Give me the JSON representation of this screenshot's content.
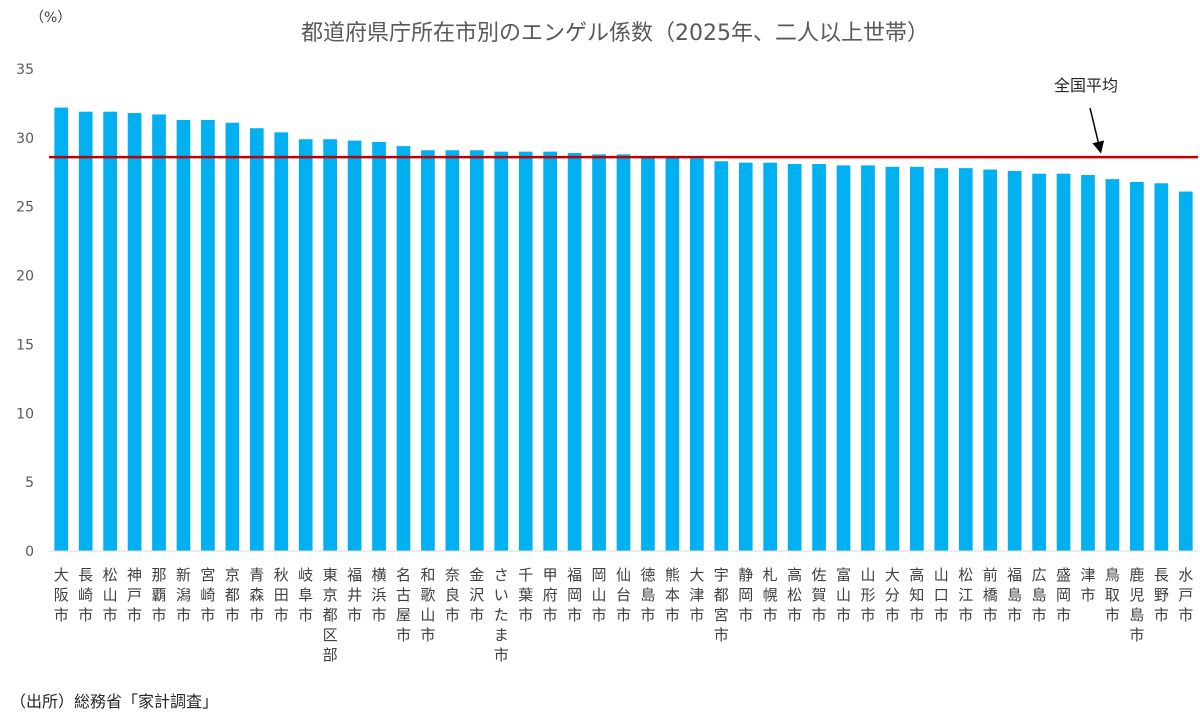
{
  "chart_data": {
    "type": "bar",
    "title": "都道府県庁所在市別のエンゲル係数（2025年、二人以上世帯）",
    "ylabel": "（%）",
    "ylim": [
      0,
      35
    ],
    "yticks": [
      0,
      5,
      10,
      15,
      20,
      25,
      30,
      35
    ],
    "grid": false,
    "categories": [
      "大阪市",
      "長崎市",
      "松山市",
      "神戸市",
      "那覇市",
      "新潟市",
      "宮崎市",
      "京都市",
      "青森市",
      "秋田市",
      "岐阜市",
      "東京都区部",
      "福井市",
      "横浜市",
      "名古屋市",
      "和歌山市",
      "奈良市",
      "金沢市",
      "さいたま市",
      "千葉市",
      "甲府市",
      "福岡市",
      "岡山市",
      "仙台市",
      "徳島市",
      "熊本市",
      "大津市",
      "宇都宮市",
      "静岡市",
      "札幌市",
      "高松市",
      "佐賀市",
      "富山市",
      "山形市",
      "大分市",
      "高知市",
      "山口市",
      "松江市",
      "前橋市",
      "福島市",
      "広島市",
      "盛岡市",
      "津市",
      "鳥取市",
      "鹿児島市",
      "長野市",
      "水戸市"
    ],
    "values": [
      32.2,
      31.9,
      31.9,
      31.8,
      31.7,
      31.3,
      31.3,
      31.1,
      30.7,
      30.4,
      29.9,
      29.9,
      29.8,
      29.7,
      29.4,
      29.1,
      29.1,
      29.1,
      29.0,
      29.0,
      29.0,
      28.9,
      28.8,
      28.8,
      28.6,
      28.6,
      28.5,
      28.3,
      28.2,
      28.2,
      28.1,
      28.1,
      28.0,
      28.0,
      27.9,
      27.9,
      27.8,
      27.8,
      27.7,
      27.6,
      27.4,
      27.4,
      27.3,
      27.0,
      26.8,
      26.7,
      26.1
    ],
    "bar_color": "#00B0F0",
    "reference_line": {
      "label": "全国平均",
      "value": 28.6,
      "color": "#C00000"
    }
  },
  "source_note": "（出所）総務省「家計調査」"
}
